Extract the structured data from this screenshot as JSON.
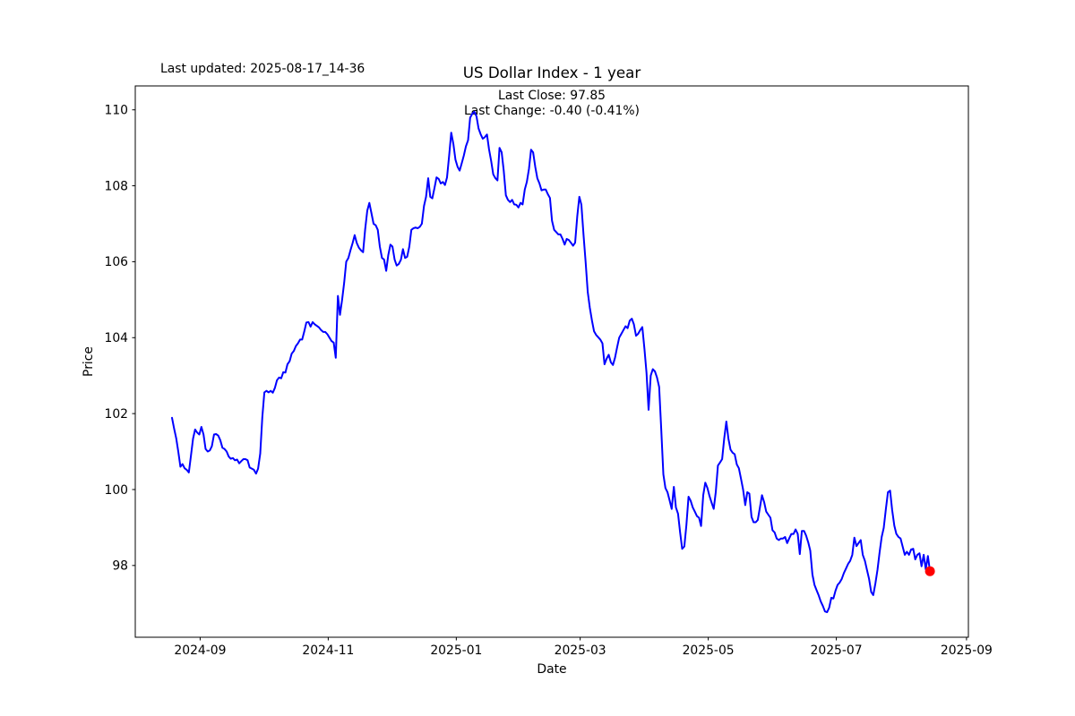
{
  "header": {
    "last_updated": "Last updated: 2025-08-17_14-36",
    "title": "US Dollar Index - 1 year",
    "last_close_line": "Last Close: 97.85",
    "last_change_line": "Last Change: -0.40 (-0.41%)"
  },
  "axes": {
    "xlabel": "Date",
    "ylabel": "Price"
  },
  "chart_data": {
    "type": "line",
    "title": "US Dollar Index - 1 year",
    "xlabel": "Date",
    "ylabel": "Price",
    "grid": false,
    "legend": false,
    "line_color": "#0000ff",
    "marker_color": "#ff0000",
    "last_close": 97.85,
    "last_change": "-0.40 (-0.41%)",
    "x_unit": "days since 2024-08-18",
    "xlim": [
      -17.5,
      379.3
    ],
    "ylim": [
      96.11,
      110.63
    ],
    "y_ticks": [
      98,
      100,
      102,
      104,
      106,
      108,
      110
    ],
    "x_ticks": [
      {
        "d": 13.4,
        "label": "2024-09"
      },
      {
        "d": 74.4,
        "label": "2024-11"
      },
      {
        "d": 135.4,
        "label": "2025-01"
      },
      {
        "d": 194.4,
        "label": "2025-03"
      },
      {
        "d": 255.4,
        "label": "2025-05"
      },
      {
        "d": 316.4,
        "label": "2025-07"
      },
      {
        "d": 378.4,
        "label": "2025-09"
      }
    ],
    "points": [
      [
        0,
        101.89
      ],
      [
        1,
        101.6
      ],
      [
        2,
        101.35
      ],
      [
        3,
        101.0
      ],
      [
        4,
        100.6
      ],
      [
        5,
        100.67
      ],
      [
        6,
        100.56
      ],
      [
        7,
        100.52
      ],
      [
        8,
        100.45
      ],
      [
        9,
        100.88
      ],
      [
        10,
        101.34
      ],
      [
        11,
        101.58
      ],
      [
        12,
        101.5
      ],
      [
        13,
        101.45
      ],
      [
        14,
        101.65
      ],
      [
        15,
        101.45
      ],
      [
        16,
        101.07
      ],
      [
        17,
        101.0
      ],
      [
        18,
        101.03
      ],
      [
        19,
        101.14
      ],
      [
        20,
        101.45
      ],
      [
        21,
        101.46
      ],
      [
        22,
        101.42
      ],
      [
        23,
        101.3
      ],
      [
        24,
        101.1
      ],
      [
        25,
        101.07
      ],
      [
        26,
        101.0
      ],
      [
        27,
        100.87
      ],
      [
        28,
        100.81
      ],
      [
        29,
        100.83
      ],
      [
        30,
        100.77
      ],
      [
        31,
        100.79
      ],
      [
        32,
        100.69
      ],
      [
        33,
        100.75
      ],
      [
        34,
        100.8
      ],
      [
        35,
        100.8
      ],
      [
        36,
        100.77
      ],
      [
        37,
        100.58
      ],
      [
        38,
        100.55
      ],
      [
        39,
        100.52
      ],
      [
        40,
        100.42
      ],
      [
        41,
        100.55
      ],
      [
        42,
        100.95
      ],
      [
        43,
        101.9
      ],
      [
        44,
        102.56
      ],
      [
        45,
        102.6
      ],
      [
        46,
        102.56
      ],
      [
        47,
        102.6
      ],
      [
        48,
        102.55
      ],
      [
        49,
        102.68
      ],
      [
        50,
        102.88
      ],
      [
        51,
        102.95
      ],
      [
        52,
        102.93
      ],
      [
        53,
        103.09
      ],
      [
        54,
        103.08
      ],
      [
        55,
        103.3
      ],
      [
        56,
        103.38
      ],
      [
        57,
        103.58
      ],
      [
        58,
        103.65
      ],
      [
        59,
        103.78
      ],
      [
        60,
        103.85
      ],
      [
        61,
        103.95
      ],
      [
        62,
        103.95
      ],
      [
        63,
        104.17
      ],
      [
        64,
        104.4
      ],
      [
        65,
        104.41
      ],
      [
        66,
        104.29
      ],
      [
        67,
        104.41
      ],
      [
        68,
        104.35
      ],
      [
        69,
        104.31
      ],
      [
        70,
        104.27
      ],
      [
        71,
        104.2
      ],
      [
        72,
        104.15
      ],
      [
        73,
        104.15
      ],
      [
        74,
        104.09
      ],
      [
        75,
        104.0
      ],
      [
        76,
        103.91
      ],
      [
        77,
        103.87
      ],
      [
        78,
        103.47
      ],
      [
        79,
        105.1
      ],
      [
        80,
        104.6
      ],
      [
        81,
        105.0
      ],
      [
        82,
        105.45
      ],
      [
        83,
        106.0
      ],
      [
        84,
        106.1
      ],
      [
        85,
        106.3
      ],
      [
        86,
        106.49
      ],
      [
        87,
        106.7
      ],
      [
        88,
        106.49
      ],
      [
        89,
        106.37
      ],
      [
        90,
        106.3
      ],
      [
        91,
        106.25
      ],
      [
        92,
        106.85
      ],
      [
        93,
        107.35
      ],
      [
        94,
        107.55
      ],
      [
        95,
        107.27
      ],
      [
        96,
        107.0
      ],
      [
        97,
        106.96
      ],
      [
        98,
        106.84
      ],
      [
        99,
        106.4
      ],
      [
        100,
        106.1
      ],
      [
        101,
        106.06
      ],
      [
        102,
        105.76
      ],
      [
        103,
        106.17
      ],
      [
        104,
        106.45
      ],
      [
        105,
        106.4
      ],
      [
        106,
        106.06
      ],
      [
        107,
        105.9
      ],
      [
        108,
        105.94
      ],
      [
        109,
        106.05
      ],
      [
        110,
        106.33
      ],
      [
        111,
        106.1
      ],
      [
        112,
        106.13
      ],
      [
        113,
        106.4
      ],
      [
        114,
        106.84
      ],
      [
        115,
        106.88
      ],
      [
        116,
        106.9
      ],
      [
        117,
        106.88
      ],
      [
        118,
        106.92
      ],
      [
        119,
        107.0
      ],
      [
        120,
        107.47
      ],
      [
        121,
        107.71
      ],
      [
        122,
        108.2
      ],
      [
        123,
        107.71
      ],
      [
        124,
        107.67
      ],
      [
        125,
        107.94
      ],
      [
        126,
        108.22
      ],
      [
        127,
        108.18
      ],
      [
        128,
        108.06
      ],
      [
        129,
        108.1
      ],
      [
        130,
        108.02
      ],
      [
        131,
        108.22
      ],
      [
        132,
        108.8
      ],
      [
        133,
        109.4
      ],
      [
        134,
        109.1
      ],
      [
        135,
        108.69
      ],
      [
        136,
        108.5
      ],
      [
        137,
        108.4
      ],
      [
        138,
        108.6
      ],
      [
        139,
        108.8
      ],
      [
        140,
        109.04
      ],
      [
        141,
        109.2
      ],
      [
        142,
        109.79
      ],
      [
        143,
        109.9
      ],
      [
        144,
        109.95
      ],
      [
        145,
        109.83
      ],
      [
        146,
        109.51
      ],
      [
        147,
        109.36
      ],
      [
        148,
        109.24
      ],
      [
        149,
        109.28
      ],
      [
        150,
        109.35
      ],
      [
        151,
        108.96
      ],
      [
        152,
        108.65
      ],
      [
        153,
        108.3
      ],
      [
        154,
        108.2
      ],
      [
        155,
        108.14
      ],
      [
        156,
        109.0
      ],
      [
        157,
        108.88
      ],
      [
        158,
        108.4
      ],
      [
        159,
        107.75
      ],
      [
        160,
        107.63
      ],
      [
        161,
        107.57
      ],
      [
        162,
        107.63
      ],
      [
        163,
        107.51
      ],
      [
        164,
        107.5
      ],
      [
        165,
        107.43
      ],
      [
        166,
        107.55
      ],
      [
        167,
        107.51
      ],
      [
        168,
        107.9
      ],
      [
        169,
        108.1
      ],
      [
        170,
        108.45
      ],
      [
        171,
        108.95
      ],
      [
        172,
        108.88
      ],
      [
        173,
        108.5
      ],
      [
        174,
        108.2
      ],
      [
        175,
        108.06
      ],
      [
        176,
        107.88
      ],
      [
        177,
        107.9
      ],
      [
        178,
        107.9
      ],
      [
        179,
        107.78
      ],
      [
        180,
        107.68
      ],
      [
        181,
        107.08
      ],
      [
        182,
        106.84
      ],
      [
        183,
        106.78
      ],
      [
        184,
        106.72
      ],
      [
        185,
        106.72
      ],
      [
        186,
        106.6
      ],
      [
        187,
        106.45
      ],
      [
        188,
        106.6
      ],
      [
        189,
        106.57
      ],
      [
        190,
        106.5
      ],
      [
        191,
        106.42
      ],
      [
        192,
        106.5
      ],
      [
        193,
        107.2
      ],
      [
        194,
        107.71
      ],
      [
        195,
        107.5
      ],
      [
        196,
        106.7
      ],
      [
        197,
        106.0
      ],
      [
        198,
        105.2
      ],
      [
        199,
        104.79
      ],
      [
        200,
        104.45
      ],
      [
        201,
        104.17
      ],
      [
        202,
        104.07
      ],
      [
        203,
        104.01
      ],
      [
        204,
        103.95
      ],
      [
        205,
        103.85
      ],
      [
        206,
        103.3
      ],
      [
        207,
        103.45
      ],
      [
        208,
        103.55
      ],
      [
        209,
        103.35
      ],
      [
        210,
        103.28
      ],
      [
        211,
        103.47
      ],
      [
        212,
        103.75
      ],
      [
        213,
        104.0
      ],
      [
        214,
        104.1
      ],
      [
        215,
        104.2
      ],
      [
        216,
        104.3
      ],
      [
        217,
        104.25
      ],
      [
        218,
        104.45
      ],
      [
        219,
        104.5
      ],
      [
        220,
        104.35
      ],
      [
        221,
        104.05
      ],
      [
        222,
        104.1
      ],
      [
        223,
        104.2
      ],
      [
        224,
        104.28
      ],
      [
        225,
        103.7
      ],
      [
        226,
        103.07
      ],
      [
        227,
        102.1
      ],
      [
        228,
        103.0
      ],
      [
        229,
        103.17
      ],
      [
        230,
        103.11
      ],
      [
        231,
        102.95
      ],
      [
        232,
        102.7
      ],
      [
        233,
        101.6
      ],
      [
        234,
        100.4
      ],
      [
        235,
        100.04
      ],
      [
        236,
        99.93
      ],
      [
        237,
        99.71
      ],
      [
        238,
        99.49
      ],
      [
        239,
        100.07
      ],
      [
        240,
        99.53
      ],
      [
        241,
        99.36
      ],
      [
        242,
        98.87
      ],
      [
        243,
        98.44
      ],
      [
        244,
        98.5
      ],
      [
        245,
        99.06
      ],
      [
        246,
        99.81
      ],
      [
        247,
        99.71
      ],
      [
        248,
        99.53
      ],
      [
        249,
        99.42
      ],
      [
        250,
        99.3
      ],
      [
        251,
        99.26
      ],
      [
        252,
        99.04
      ],
      [
        253,
        99.85
      ],
      [
        254,
        100.18
      ],
      [
        255,
        100.04
      ],
      [
        256,
        99.83
      ],
      [
        257,
        99.65
      ],
      [
        258,
        99.49
      ],
      [
        259,
        99.93
      ],
      [
        260,
        100.63
      ],
      [
        261,
        100.71
      ],
      [
        262,
        100.8
      ],
      [
        263,
        101.34
      ],
      [
        264,
        101.79
      ],
      [
        265,
        101.34
      ],
      [
        266,
        101.05
      ],
      [
        267,
        100.97
      ],
      [
        268,
        100.93
      ],
      [
        269,
        100.66
      ],
      [
        270,
        100.56
      ],
      [
        271,
        100.28
      ],
      [
        272,
        100.0
      ],
      [
        273,
        99.59
      ],
      [
        274,
        99.93
      ],
      [
        275,
        99.89
      ],
      [
        276,
        99.28
      ],
      [
        277,
        99.14
      ],
      [
        278,
        99.14
      ],
      [
        279,
        99.2
      ],
      [
        280,
        99.53
      ],
      [
        281,
        99.85
      ],
      [
        282,
        99.67
      ],
      [
        283,
        99.42
      ],
      [
        284,
        99.34
      ],
      [
        285,
        99.26
      ],
      [
        286,
        98.93
      ],
      [
        287,
        98.87
      ],
      [
        288,
        98.71
      ],
      [
        289,
        98.67
      ],
      [
        290,
        98.71
      ],
      [
        291,
        98.71
      ],
      [
        292,
        98.75
      ],
      [
        293,
        98.59
      ],
      [
        294,
        98.72
      ],
      [
        295,
        98.83
      ],
      [
        296,
        98.83
      ],
      [
        297,
        98.95
      ],
      [
        298,
        98.83
      ],
      [
        299,
        98.3
      ],
      [
        300,
        98.91
      ],
      [
        301,
        98.91
      ],
      [
        302,
        98.79
      ],
      [
        303,
        98.61
      ],
      [
        304,
        98.39
      ],
      [
        305,
        97.76
      ],
      [
        306,
        97.49
      ],
      [
        307,
        97.35
      ],
      [
        308,
        97.21
      ],
      [
        309,
        97.05
      ],
      [
        310,
        96.93
      ],
      [
        311,
        96.79
      ],
      [
        312,
        96.77
      ],
      [
        313,
        96.89
      ],
      [
        314,
        97.15
      ],
      [
        315,
        97.13
      ],
      [
        316,
        97.33
      ],
      [
        317,
        97.49
      ],
      [
        318,
        97.55
      ],
      [
        319,
        97.65
      ],
      [
        320,
        97.8
      ],
      [
        321,
        97.92
      ],
      [
        322,
        98.04
      ],
      [
        323,
        98.12
      ],
      [
        324,
        98.28
      ],
      [
        325,
        98.73
      ],
      [
        326,
        98.51
      ],
      [
        327,
        98.59
      ],
      [
        328,
        98.67
      ],
      [
        329,
        98.28
      ],
      [
        330,
        98.12
      ],
      [
        331,
        97.88
      ],
      [
        332,
        97.65
      ],
      [
        333,
        97.3
      ],
      [
        334,
        97.22
      ],
      [
        335,
        97.53
      ],
      [
        336,
        97.88
      ],
      [
        337,
        98.35
      ],
      [
        338,
        98.75
      ],
      [
        339,
        98.99
      ],
      [
        340,
        99.49
      ],
      [
        341,
        99.93
      ],
      [
        342,
        99.97
      ],
      [
        343,
        99.46
      ],
      [
        344,
        99.05
      ],
      [
        345,
        98.83
      ],
      [
        346,
        98.75
      ],
      [
        347,
        98.71
      ],
      [
        348,
        98.5
      ],
      [
        349,
        98.28
      ],
      [
        350,
        98.36
      ],
      [
        351,
        98.28
      ],
      [
        352,
        98.42
      ],
      [
        353,
        98.44
      ],
      [
        354,
        98.16
      ],
      [
        355,
        98.28
      ],
      [
        356,
        98.32
      ],
      [
        357,
        97.98
      ],
      [
        358,
        98.28
      ],
      [
        359,
        97.9
      ],
      [
        360,
        98.25
      ],
      [
        361,
        97.85
      ]
    ]
  }
}
